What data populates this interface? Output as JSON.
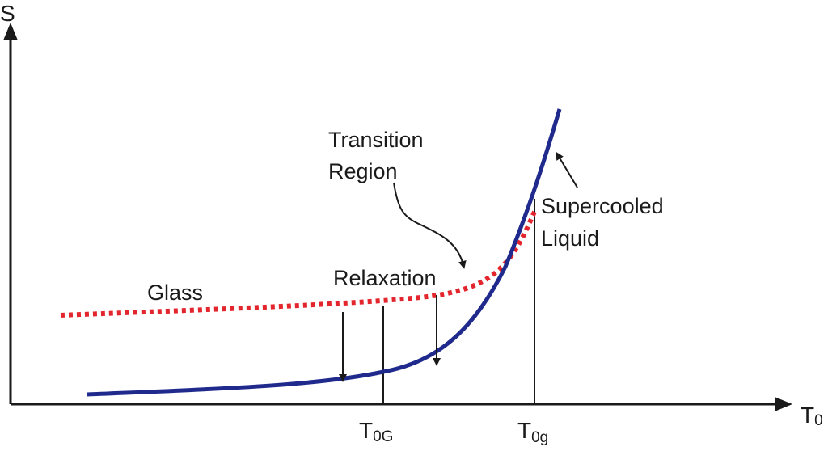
{
  "axes": {
    "y_label": "S",
    "x_label": "T",
    "x_label_sub": "0"
  },
  "labels": {
    "glass": "Glass",
    "relaxation": "Relaxation",
    "transition_line1": "Transition",
    "transition_line2": "Region",
    "supercooled_line1": "Supercooled",
    "supercooled_line2": "Liquid"
  },
  "ticks": {
    "t0G_main": "T",
    "t0G_sub": "0G",
    "t0g_main": "T",
    "t0g_sub": "0g"
  },
  "colors": {
    "supercooled_curve": "#1f2a8c",
    "glass_curve": "#e3262d",
    "ink": "#1a1a1a"
  }
}
